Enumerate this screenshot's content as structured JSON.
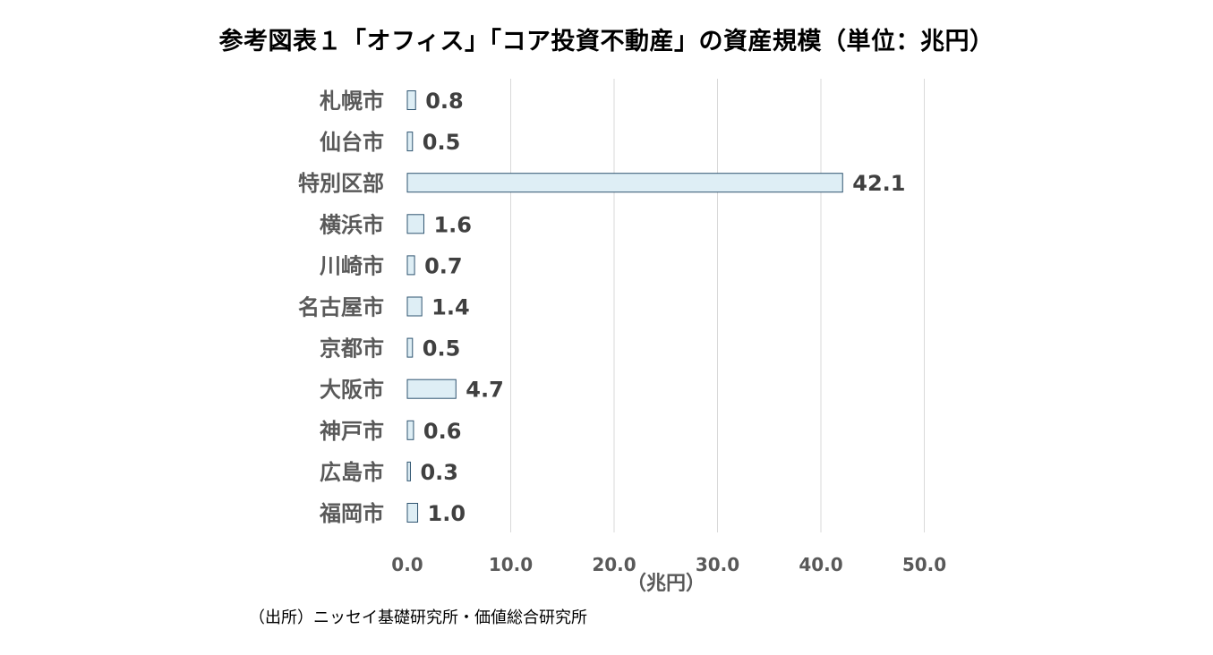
{
  "chart_data": {
    "type": "bar",
    "orientation": "horizontal",
    "title": "参考図表１「オフィス」「コア投資不動産」の資産規模（単位：兆円）",
    "xlabel": "（兆円）",
    "ylabel": "",
    "categories": [
      "札幌市",
      "仙台市",
      "特別区部",
      "横浜市",
      "川崎市",
      "名古屋市",
      "京都市",
      "大阪市",
      "神戸市",
      "広島市",
      "福岡市"
    ],
    "values": [
      0.8,
      0.5,
      42.1,
      1.6,
      0.7,
      1.4,
      0.5,
      4.7,
      0.6,
      0.3,
      1.0
    ],
    "value_labels": [
      "0.8",
      "0.5",
      "42.1",
      "1.6",
      "0.7",
      "1.4",
      "0.5",
      "4.7",
      "0.6",
      "0.3",
      "1.0"
    ],
    "xlim": [
      0,
      50
    ],
    "xticks": [
      0,
      10,
      20,
      30,
      40,
      50
    ],
    "xtick_labels": [
      "0.0",
      "10.0",
      "20.0",
      "30.0",
      "40.0",
      "50.0"
    ],
    "grid": true,
    "legend": "none",
    "bar_fill": "#deeef5",
    "bar_stroke": "#2f5470",
    "gridline_color": "#d9d9d9",
    "source": "（出所）ニッセイ基礎研究所・価値総合研究所"
  }
}
